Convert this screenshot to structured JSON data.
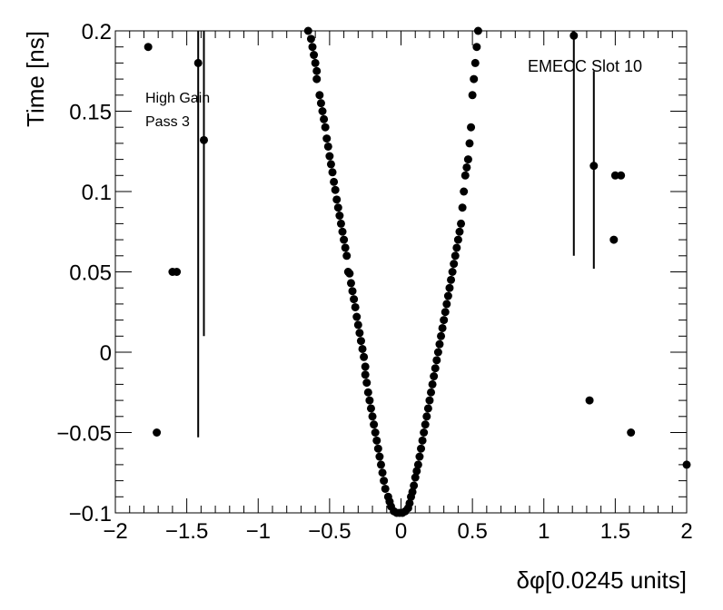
{
  "chart_data": {
    "type": "scatter",
    "title": "",
    "xlabel": "δφ[0.0245 units]",
    "ylabel": "Time [ns]",
    "xlim": [
      -2,
      2
    ],
    "ylim": [
      -0.1,
      0.2
    ],
    "grid": false,
    "legend": "none",
    "marker_color": "#000000",
    "xticks": [
      -2,
      -1.5,
      -1,
      -0.5,
      0,
      0.5,
      1,
      1.5,
      2
    ],
    "xtick_labels": [
      "−2",
      "−1.5",
      "−1",
      "−0.5",
      "0",
      "0.5",
      "1",
      "1.5",
      "2"
    ],
    "yticks": [
      -0.1,
      -0.05,
      0,
      0.05,
      0.1,
      0.15,
      0.2
    ],
    "ytick_labels": [
      "−0.1",
      "−0.05",
      "0",
      "0.05",
      "0.1",
      "0.15",
      "0.2"
    ],
    "annotations": [
      {
        "text": "High Gain"
      },
      {
        "text": "Pass 3"
      },
      {
        "text": "EMECC Slot 10"
      }
    ],
    "points": [
      {
        "x": -0.65,
        "y": 0.2
      },
      {
        "x": -0.63,
        "y": 0.195
      },
      {
        "x": -0.62,
        "y": 0.19
      },
      {
        "x": -0.61,
        "y": 0.185
      },
      {
        "x": -0.6,
        "y": 0.18
      },
      {
        "x": -0.59,
        "y": 0.175
      },
      {
        "x": -0.59,
        "y": 0.17
      },
      {
        "x": -0.57,
        "y": 0.16
      },
      {
        "x": -0.56,
        "y": 0.155
      },
      {
        "x": -0.55,
        "y": 0.15
      },
      {
        "x": -0.54,
        "y": 0.145
      },
      {
        "x": -0.53,
        "y": 0.14
      },
      {
        "x": -0.52,
        "y": 0.133
      },
      {
        "x": -0.51,
        "y": 0.128
      },
      {
        "x": -0.5,
        "y": 0.122
      },
      {
        "x": -0.49,
        "y": 0.117
      },
      {
        "x": -0.48,
        "y": 0.112
      },
      {
        "x": -0.47,
        "y": 0.106
      },
      {
        "x": -0.46,
        "y": 0.101
      },
      {
        "x": -0.45,
        "y": 0.095
      },
      {
        "x": -0.44,
        "y": 0.09
      },
      {
        "x": -0.43,
        "y": 0.085
      },
      {
        "x": -0.42,
        "y": 0.08
      },
      {
        "x": -0.41,
        "y": 0.075
      },
      {
        "x": -0.4,
        "y": 0.07
      },
      {
        "x": -0.39,
        "y": 0.065
      },
      {
        "x": -0.38,
        "y": 0.06
      },
      {
        "x": -0.37,
        "y": 0.05
      },
      {
        "x": -0.36,
        "y": 0.049
      },
      {
        "x": -0.35,
        "y": 0.043
      },
      {
        "x": -0.34,
        "y": 0.038
      },
      {
        "x": -0.33,
        "y": 0.033
      },
      {
        "x": -0.32,
        "y": 0.028
      },
      {
        "x": -0.31,
        "y": 0.022
      },
      {
        "x": -0.3,
        "y": 0.017
      },
      {
        "x": -0.29,
        "y": 0.012
      },
      {
        "x": -0.28,
        "y": 0.007
      },
      {
        "x": -0.27,
        "y": 0.002
      },
      {
        "x": -0.26,
        "y": -0.003
      },
      {
        "x": -0.25,
        "y": -0.009
      },
      {
        "x": -0.25,
        "y": -0.014
      },
      {
        "x": -0.24,
        "y": -0.019
      },
      {
        "x": -0.23,
        "y": -0.025
      },
      {
        "x": -0.22,
        "y": -0.03
      },
      {
        "x": -0.21,
        "y": -0.035
      },
      {
        "x": -0.2,
        "y": -0.04
      },
      {
        "x": -0.19,
        "y": -0.045
      },
      {
        "x": -0.18,
        "y": -0.05
      },
      {
        "x": -0.17,
        "y": -0.055
      },
      {
        "x": -0.16,
        "y": -0.06
      },
      {
        "x": -0.15,
        "y": -0.065
      },
      {
        "x": -0.14,
        "y": -0.07
      },
      {
        "x": -0.13,
        "y": -0.075
      },
      {
        "x": -0.12,
        "y": -0.08
      },
      {
        "x": -0.11,
        "y": -0.085
      },
      {
        "x": -0.09,
        "y": -0.09
      },
      {
        "x": -0.08,
        "y": -0.093
      },
      {
        "x": -0.07,
        "y": -0.096
      },
      {
        "x": -0.05,
        "y": -0.099
      },
      {
        "x": -0.03,
        "y": -0.1
      },
      {
        "x": -0.01,
        "y": -0.1
      },
      {
        "x": 0.01,
        "y": -0.1
      },
      {
        "x": 0.03,
        "y": -0.099
      },
      {
        "x": 0.05,
        "y": -0.097
      },
      {
        "x": 0.06,
        "y": -0.094
      },
      {
        "x": 0.07,
        "y": -0.09
      },
      {
        "x": 0.08,
        "y": -0.087
      },
      {
        "x": 0.09,
        "y": -0.083
      },
      {
        "x": 0.1,
        "y": -0.078
      },
      {
        "x": 0.11,
        "y": -0.074
      },
      {
        "x": 0.12,
        "y": -0.07
      },
      {
        "x": 0.13,
        "y": -0.065
      },
      {
        "x": 0.14,
        "y": -0.06
      },
      {
        "x": 0.15,
        "y": -0.055
      },
      {
        "x": 0.16,
        "y": -0.05
      },
      {
        "x": 0.17,
        "y": -0.045
      },
      {
        "x": 0.18,
        "y": -0.04
      },
      {
        "x": 0.19,
        "y": -0.035
      },
      {
        "x": 0.2,
        "y": -0.03
      },
      {
        "x": 0.21,
        "y": -0.025
      },
      {
        "x": 0.22,
        "y": -0.02
      },
      {
        "x": 0.23,
        "y": -0.015
      },
      {
        "x": 0.24,
        "y": -0.01
      },
      {
        "x": 0.25,
        "y": -0.005
      },
      {
        "x": 0.26,
        "y": 0.0
      },
      {
        "x": 0.27,
        "y": 0.005
      },
      {
        "x": 0.28,
        "y": 0.01
      },
      {
        "x": 0.29,
        "y": 0.015
      },
      {
        "x": 0.3,
        "y": 0.02
      },
      {
        "x": 0.31,
        "y": 0.025
      },
      {
        "x": 0.32,
        "y": 0.03
      },
      {
        "x": 0.33,
        "y": 0.035
      },
      {
        "x": 0.34,
        "y": 0.04
      },
      {
        "x": 0.35,
        "y": 0.045
      },
      {
        "x": 0.36,
        "y": 0.05
      },
      {
        "x": 0.37,
        "y": 0.055
      },
      {
        "x": 0.38,
        "y": 0.06
      },
      {
        "x": 0.39,
        "y": 0.065
      },
      {
        "x": 0.4,
        "y": 0.07
      },
      {
        "x": 0.41,
        "y": 0.075
      },
      {
        "x": 0.42,
        "y": 0.08
      },
      {
        "x": 0.43,
        "y": 0.09
      },
      {
        "x": 0.44,
        "y": 0.1
      },
      {
        "x": 0.45,
        "y": 0.11
      },
      {
        "x": 0.46,
        "y": 0.115
      },
      {
        "x": 0.47,
        "y": 0.12
      },
      {
        "x": 0.48,
        "y": 0.13
      },
      {
        "x": 0.49,
        "y": 0.14
      },
      {
        "x": 0.5,
        "y": 0.16
      },
      {
        "x": 0.51,
        "y": 0.17
      },
      {
        "x": 0.52,
        "y": 0.18
      },
      {
        "x": 0.53,
        "y": 0.19
      },
      {
        "x": 0.54,
        "y": 0.2
      },
      {
        "x": -1.77,
        "y": 0.19
      },
      {
        "x": -1.42,
        "y": 0.18
      },
      {
        "x": -1.38,
        "y": 0.132
      },
      {
        "x": -1.6,
        "y": 0.05
      },
      {
        "x": -1.57,
        "y": 0.05
      },
      {
        "x": -1.71,
        "y": -0.05
      },
      {
        "x": 1.21,
        "y": 0.197
      },
      {
        "x": 1.35,
        "y": 0.116
      },
      {
        "x": 1.5,
        "y": 0.11
      },
      {
        "x": 1.54,
        "y": 0.11
      },
      {
        "x": 1.49,
        "y": 0.07
      },
      {
        "x": 1.32,
        "y": -0.03
      },
      {
        "x": 1.61,
        "y": -0.05
      },
      {
        "x": 2.0,
        "y": -0.07
      }
    ],
    "error_bars": [
      {
        "x": -1.42,
        "y_low": -0.053,
        "y_high": 0.2
      },
      {
        "x": -1.38,
        "y_low": 0.01,
        "y_high": 0.2
      },
      {
        "x": 1.21,
        "y_low": 0.06,
        "y_high": 0.2
      },
      {
        "x": 1.35,
        "y_low": 0.052,
        "y_high": 0.175
      }
    ]
  }
}
